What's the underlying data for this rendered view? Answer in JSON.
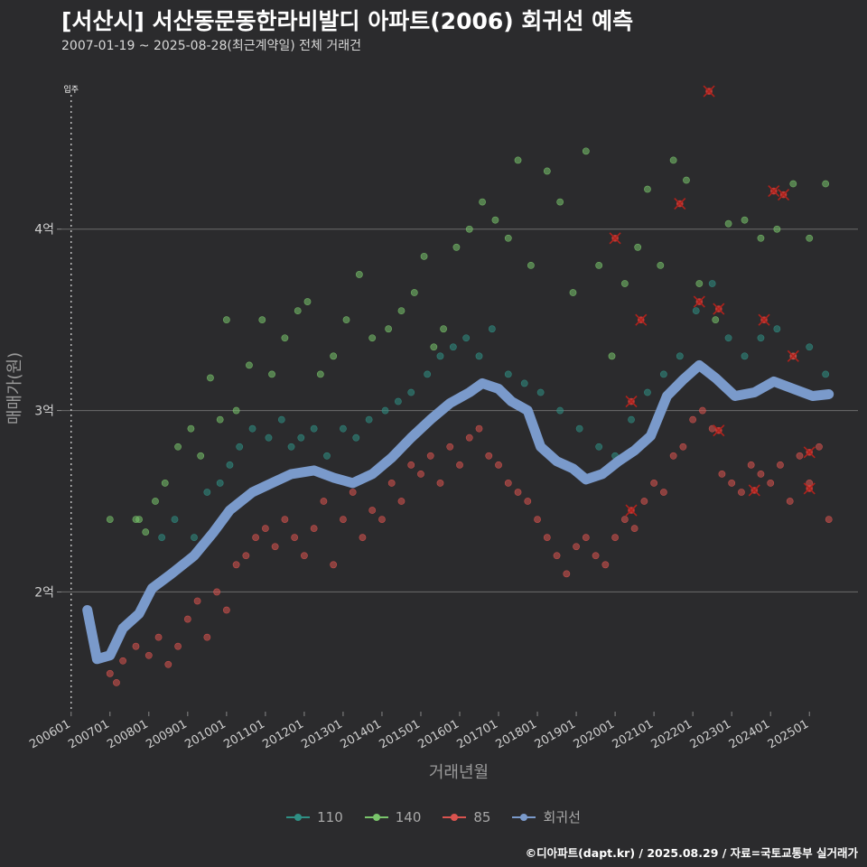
{
  "title": "[서산시] 서산동문동한라비발디 아파트(2006) 회귀선 예측",
  "subtitle": "2007-01-19 ~ 2025-08-28(최근계약일) 전체 거래건",
  "footer": "©디아파트(dapt.kr) / 2025.08.29 / 자료=국토교통부 실거래가",
  "chart_data": {
    "type": "scatter",
    "xlabel": "거래년월",
    "ylabel": "매매가(원)",
    "x_ticks": [
      "200601",
      "200701",
      "200801",
      "200901",
      "201001",
      "201101",
      "201201",
      "201301",
      "201401",
      "201501",
      "201601",
      "201701",
      "201801",
      "201901",
      "202001",
      "202101",
      "202201",
      "202301",
      "202401",
      "202501"
    ],
    "y_ticks": [
      {
        "value": 200000000,
        "label": "2억"
      },
      {
        "value": 300000000,
        "label": "3억"
      },
      {
        "value": 400000000,
        "label": "4억"
      }
    ],
    "xlim": [
      "2005-10",
      "2026-04"
    ],
    "ylim": [
      134000000,
      484000000
    ],
    "grid": "horizontal",
    "legend_position": "bottom",
    "annotation": {
      "date": "2006-01",
      "label": "입주"
    },
    "series": [
      {
        "name": "110",
        "color": "#2f8f84",
        "points": [
          [
            "2008-05",
            230000000.0
          ],
          [
            "2008-09",
            240000000.0
          ],
          [
            "2009-03",
            230000000.0
          ],
          [
            "2009-07",
            255000000.0
          ],
          [
            "2009-11",
            260000000.0
          ],
          [
            "2010-02",
            270000000.0
          ],
          [
            "2010-05",
            280000000.0
          ],
          [
            "2010-09",
            290000000.0
          ],
          [
            "2011-02",
            285000000.0
          ],
          [
            "2011-06",
            295000000.0
          ],
          [
            "2011-09",
            280000000.0
          ],
          [
            "2011-12",
            285000000.0
          ],
          [
            "2012-04",
            290000000.0
          ],
          [
            "2012-08",
            275000000.0
          ],
          [
            "2013-01",
            290000000.0
          ],
          [
            "2013-05",
            285000000.0
          ],
          [
            "2013-09",
            295000000.0
          ],
          [
            "2014-02",
            300000000.0
          ],
          [
            "2014-06",
            305000000.0
          ],
          [
            "2014-10",
            310000000.0
          ],
          [
            "2015-03",
            320000000.0
          ],
          [
            "2015-07",
            330000000.0
          ],
          [
            "2015-11",
            335000000.0
          ],
          [
            "2016-03",
            340000000.0
          ],
          [
            "2016-07",
            330000000.0
          ],
          [
            "2016-11",
            345000000.0
          ],
          [
            "2017-04",
            320000000.0
          ],
          [
            "2017-09",
            315000000.0
          ],
          [
            "2018-02",
            310000000.0
          ],
          [
            "2018-08",
            300000000.0
          ],
          [
            "2019-02",
            290000000.0
          ],
          [
            "2019-08",
            280000000.0
          ],
          [
            "2020-01",
            275000000.0
          ],
          [
            "2020-06",
            295000000.0
          ],
          [
            "2020-11",
            310000000.0
          ],
          [
            "2021-04",
            320000000.0
          ],
          [
            "2021-09",
            330000000.0
          ],
          [
            "2022-02",
            355000000.0
          ],
          [
            "2022-07",
            370000000.0
          ],
          [
            "2022-12",
            340000000.0
          ],
          [
            "2023-05",
            330000000.0
          ],
          [
            "2023-10",
            340000000.0
          ],
          [
            "2024-03",
            345000000.0
          ],
          [
            "2024-08",
            330000000.0
          ],
          [
            "2025-01",
            335000000.0
          ],
          [
            "2025-06",
            320000000.0
          ]
        ]
      },
      {
        "name": "140",
        "color": "#79c46b",
        "points": [
          [
            "2007-01",
            240000000.0
          ],
          [
            "2007-09",
            240000000.0
          ],
          [
            "2007-10",
            240000000.0
          ],
          [
            "2007-12",
            233000000.0
          ],
          [
            "2008-03",
            250000000.0
          ],
          [
            "2008-06",
            260000000.0
          ],
          [
            "2008-10",
            280000000.0
          ],
          [
            "2009-02",
            290000000.0
          ],
          [
            "2009-05",
            275000000.0
          ],
          [
            "2009-08",
            318000000.0
          ],
          [
            "2009-11",
            295000000.0
          ],
          [
            "2010-01",
            350000000.0
          ],
          [
            "2010-04",
            300000000.0
          ],
          [
            "2010-08",
            325000000.0
          ],
          [
            "2010-12",
            350000000.0
          ],
          [
            "2011-03",
            320000000.0
          ],
          [
            "2011-07",
            340000000.0
          ],
          [
            "2011-11",
            355000000.0
          ],
          [
            "2012-02",
            360000000.0
          ],
          [
            "2012-06",
            320000000.0
          ],
          [
            "2012-10",
            330000000.0
          ],
          [
            "2013-02",
            350000000.0
          ],
          [
            "2013-06",
            375000000.0
          ],
          [
            "2013-10",
            340000000.0
          ],
          [
            "2014-03",
            345000000.0
          ],
          [
            "2014-07",
            355000000.0
          ],
          [
            "2014-11",
            365000000.0
          ],
          [
            "2015-02",
            385000000.0
          ],
          [
            "2015-05",
            335000000.0
          ],
          [
            "2015-08",
            345000000.0
          ],
          [
            "2015-12",
            390000000.0
          ],
          [
            "2016-04",
            400000000.0
          ],
          [
            "2016-08",
            415000000.0
          ],
          [
            "2016-12",
            405000000.0
          ],
          [
            "2017-04",
            395000000.0
          ],
          [
            "2017-07",
            438000000.0
          ],
          [
            "2017-11",
            380000000.0
          ],
          [
            "2018-04",
            432000000.0
          ],
          [
            "2018-08",
            415000000.0
          ],
          [
            "2018-12",
            365000000.0
          ],
          [
            "2019-04",
            443000000.0
          ],
          [
            "2019-08",
            380000000.0
          ],
          [
            "2019-12",
            330000000.0
          ],
          [
            "2020-04",
            370000000.0
          ],
          [
            "2020-08",
            390000000.0
          ],
          [
            "2020-11",
            422000000.0
          ],
          [
            "2021-03",
            380000000.0
          ],
          [
            "2021-07",
            438000000.0
          ],
          [
            "2021-11",
            427000000.0
          ],
          [
            "2022-03",
            370000000.0
          ],
          [
            "2022-08",
            350000000.0
          ],
          [
            "2022-12",
            403000000.0
          ],
          [
            "2023-05",
            405000000.0
          ],
          [
            "2023-10",
            395000000.0
          ],
          [
            "2024-03",
            400000000.0
          ],
          [
            "2024-08",
            425000000.0
          ],
          [
            "2025-01",
            395000000.0
          ],
          [
            "2025-06",
            425000000.0
          ]
        ]
      },
      {
        "name": "85",
        "color": "#d9534f",
        "points": [
          [
            "2007-01",
            155000000.0
          ],
          [
            "2007-03",
            150000000.0
          ],
          [
            "2007-05",
            162000000.0
          ],
          [
            "2007-09",
            170000000.0
          ],
          [
            "2008-01",
            165000000.0
          ],
          [
            "2008-04",
            175000000.0
          ],
          [
            "2008-07",
            160000000.0
          ],
          [
            "2008-10",
            170000000.0
          ],
          [
            "2009-01",
            185000000.0
          ],
          [
            "2009-04",
            195000000.0
          ],
          [
            "2009-07",
            175000000.0
          ],
          [
            "2009-10",
            200000000.0
          ],
          [
            "2010-01",
            190000000.0
          ],
          [
            "2010-04",
            215000000.0
          ],
          [
            "2010-07",
            220000000.0
          ],
          [
            "2010-10",
            230000000.0
          ],
          [
            "2011-01",
            235000000.0
          ],
          [
            "2011-04",
            225000000.0
          ],
          [
            "2011-07",
            240000000.0
          ],
          [
            "2011-10",
            230000000.0
          ],
          [
            "2012-01",
            220000000.0
          ],
          [
            "2012-04",
            235000000.0
          ],
          [
            "2012-07",
            250000000.0
          ],
          [
            "2012-10",
            215000000.0
          ],
          [
            "2013-01",
            240000000.0
          ],
          [
            "2013-04",
            255000000.0
          ],
          [
            "2013-07",
            230000000.0
          ],
          [
            "2013-10",
            245000000.0
          ],
          [
            "2014-01",
            240000000.0
          ],
          [
            "2014-04",
            260000000.0
          ],
          [
            "2014-07",
            250000000.0
          ],
          [
            "2014-10",
            270000000.0
          ],
          [
            "2015-01",
            265000000.0
          ],
          [
            "2015-04",
            275000000.0
          ],
          [
            "2015-07",
            260000000.0
          ],
          [
            "2015-10",
            280000000.0
          ],
          [
            "2016-01",
            270000000.0
          ],
          [
            "2016-04",
            285000000.0
          ],
          [
            "2016-07",
            290000000.0
          ],
          [
            "2016-10",
            275000000.0
          ],
          [
            "2017-01",
            270000000.0
          ],
          [
            "2017-04",
            260000000.0
          ],
          [
            "2017-07",
            255000000.0
          ],
          [
            "2017-10",
            250000000.0
          ],
          [
            "2018-01",
            240000000.0
          ],
          [
            "2018-04",
            230000000.0
          ],
          [
            "2018-07",
            220000000.0
          ],
          [
            "2018-10",
            210000000.0
          ],
          [
            "2019-01",
            225000000.0
          ],
          [
            "2019-04",
            230000000.0
          ],
          [
            "2019-07",
            220000000.0
          ],
          [
            "2019-10",
            215000000.0
          ],
          [
            "2020-01",
            230000000.0
          ],
          [
            "2020-04",
            240000000.0
          ],
          [
            "2020-07",
            235000000.0
          ],
          [
            "2020-10",
            250000000.0
          ],
          [
            "2021-01",
            260000000.0
          ],
          [
            "2021-04",
            255000000.0
          ],
          [
            "2021-07",
            275000000.0
          ],
          [
            "2021-10",
            280000000.0
          ],
          [
            "2022-01",
            295000000.0
          ],
          [
            "2022-04",
            300000000.0
          ],
          [
            "2022-07",
            290000000.0
          ],
          [
            "2022-10",
            265000000.0
          ],
          [
            "2023-01",
            260000000.0
          ],
          [
            "2023-04",
            255000000.0
          ],
          [
            "2023-07",
            270000000.0
          ],
          [
            "2023-10",
            265000000.0
          ],
          [
            "2024-01",
            260000000.0
          ],
          [
            "2024-04",
            270000000.0
          ],
          [
            "2024-07",
            250000000.0
          ],
          [
            "2024-10",
            275000000.0
          ],
          [
            "2025-01",
            260000000.0
          ],
          [
            "2025-04",
            280000000.0
          ],
          [
            "2025-07",
            240000000.0
          ]
        ]
      },
      {
        "name": "회귀선",
        "color": "#7a9acb",
        "points": [
          [
            "2006-06",
            190000000.0
          ],
          [
            "2006-09",
            163000000.0
          ],
          [
            "2007-01",
            165000000.0
          ],
          [
            "2007-05",
            180000000.0
          ],
          [
            "2007-10",
            188000000.0
          ],
          [
            "2008-02",
            202000000.0
          ],
          [
            "2008-08",
            210000000.0
          ],
          [
            "2009-03",
            220000000.0
          ],
          [
            "2009-09",
            233000000.0
          ],
          [
            "2010-02",
            245000000.0
          ],
          [
            "2010-09",
            255000000.0
          ],
          [
            "2011-03",
            260000000.0
          ],
          [
            "2011-09",
            265000000.0
          ],
          [
            "2012-04",
            267000000.0
          ],
          [
            "2012-10",
            263000000.0
          ],
          [
            "2013-04",
            260000000.0
          ],
          [
            "2013-10",
            265000000.0
          ],
          [
            "2014-04",
            274000000.0
          ],
          [
            "2014-10",
            285000000.0
          ],
          [
            "2015-04",
            295000000.0
          ],
          [
            "2015-10",
            304000000.0
          ],
          [
            "2016-04",
            310000000.0
          ],
          [
            "2016-08",
            315000000.0
          ],
          [
            "2017-01",
            312000000.0
          ],
          [
            "2017-05",
            305000000.0
          ],
          [
            "2017-10",
            300000000.0
          ],
          [
            "2018-02",
            280000000.0
          ],
          [
            "2018-07",
            272000000.0
          ],
          [
            "2018-12",
            268000000.0
          ],
          [
            "2019-04",
            262000000.0
          ],
          [
            "2019-09",
            265000000.0
          ],
          [
            "2020-02",
            272000000.0
          ],
          [
            "2020-07",
            278000000.0
          ],
          [
            "2020-12",
            286000000.0
          ],
          [
            "2021-05",
            308000000.0
          ],
          [
            "2021-10",
            317000000.0
          ],
          [
            "2022-03",
            325000000.0
          ],
          [
            "2022-08",
            318000000.0
          ],
          [
            "2023-02",
            308000000.0
          ],
          [
            "2023-08",
            310000000.0
          ],
          [
            "2024-02",
            316000000.0
          ],
          [
            "2024-08",
            312000000.0
          ],
          [
            "2025-02",
            308000000.0
          ],
          [
            "2025-07",
            309000000.0
          ]
        ]
      }
    ],
    "cancelled_points": [
      [
        "2020-01",
        395000000.0
      ],
      [
        "2020-06",
        305000000.0
      ],
      [
        "2020-06",
        245000000.0
      ],
      [
        "2020-09",
        350000000.0
      ],
      [
        "2021-09",
        414000000.0
      ],
      [
        "2022-03",
        360000000.0
      ],
      [
        "2022-06",
        476000000.0
      ],
      [
        "2022-09",
        356000000.0
      ],
      [
        "2022-09",
        289000000.0
      ],
      [
        "2023-08",
        256000000.0
      ],
      [
        "2023-11",
        350000000.0
      ],
      [
        "2024-02",
        421000000.0
      ],
      [
        "2024-05",
        419000000.0
      ],
      [
        "2024-08",
        330000000.0
      ],
      [
        "2025-01",
        277000000.0
      ],
      [
        "2025-01",
        257000000.0
      ]
    ]
  }
}
